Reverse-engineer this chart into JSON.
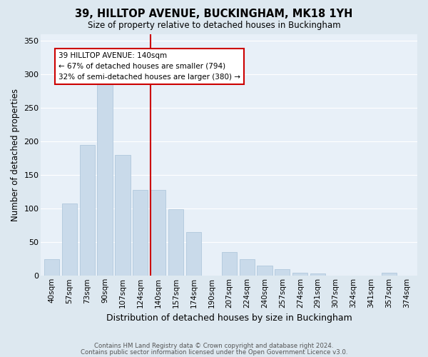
{
  "title1": "39, HILLTOP AVENUE, BUCKINGHAM, MK18 1YH",
  "title2": "Size of property relative to detached houses in Buckingham",
  "xlabel": "Distribution of detached houses by size in Buckingham",
  "ylabel": "Number of detached properties",
  "categories": [
    "40sqm",
    "57sqm",
    "73sqm",
    "90sqm",
    "107sqm",
    "124sqm",
    "140sqm",
    "157sqm",
    "174sqm",
    "190sqm",
    "207sqm",
    "224sqm",
    "240sqm",
    "257sqm",
    "274sqm",
    "291sqm",
    "307sqm",
    "324sqm",
    "341sqm",
    "357sqm",
    "374sqm"
  ],
  "values": [
    25,
    108,
    195,
    290,
    180,
    128,
    128,
    99,
    65,
    0,
    35,
    25,
    15,
    10,
    5,
    3,
    0,
    0,
    0,
    5,
    0
  ],
  "bar_color": "#c9daea",
  "bar_edgecolor": "#b0c8dc",
  "vline_color": "#cc0000",
  "vline_index": 6,
  "annotation_text": "39 HILLTOP AVENUE: 140sqm\n← 67% of detached houses are smaller (794)\n32% of semi-detached houses are larger (380) →",
  "annotation_box_facecolor": "#ffffff",
  "annotation_box_edgecolor": "#cc0000",
  "bg_color": "#dde8f0",
  "plot_bg_color": "#e8f0f8",
  "grid_color": "#ffffff",
  "ylim": [
    0,
    360
  ],
  "yticks": [
    0,
    50,
    100,
    150,
    200,
    250,
    300,
    350
  ],
  "footer1": "Contains HM Land Registry data © Crown copyright and database right 2024.",
  "footer2": "Contains public sector information licensed under the Open Government Licence v3.0."
}
